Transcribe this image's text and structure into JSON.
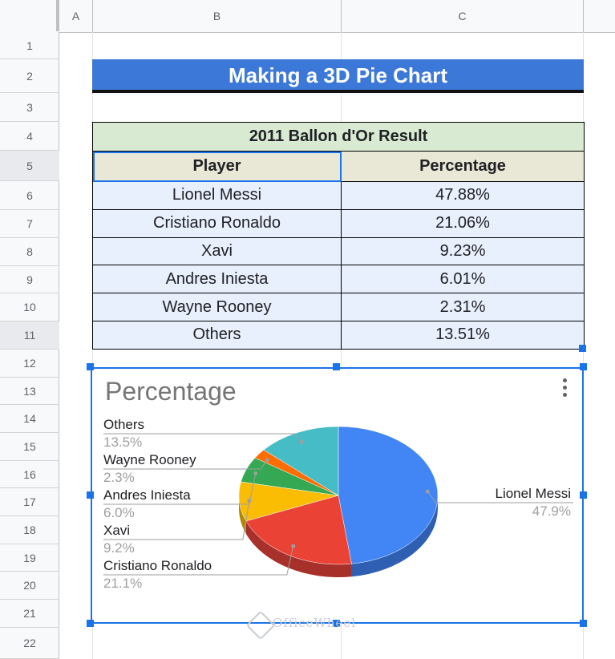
{
  "columns": [
    "A",
    "B",
    "C"
  ],
  "rows": [
    "1",
    "2",
    "3",
    "4",
    "5",
    "6",
    "7",
    "8",
    "9",
    "10",
    "11",
    "12",
    "13",
    "14",
    "15",
    "16",
    "17",
    "18",
    "19",
    "20",
    "21",
    "22"
  ],
  "sheet_title": "Making a 3D Pie Chart",
  "table": {
    "caption": "2011 Ballon d'Or Result",
    "headers": [
      "Player",
      "Percentage"
    ],
    "rows": [
      [
        "Lionel Messi",
        "47.88%"
      ],
      [
        "Cristiano Ronaldo",
        "21.06%"
      ],
      [
        "Xavi",
        "9.23%"
      ],
      [
        "Andres Iniesta",
        "6.01%"
      ],
      [
        "Wayne Rooney",
        "2.31%"
      ],
      [
        "Others",
        "13.51%"
      ]
    ]
  },
  "chart_data": {
    "type": "pie",
    "title": "Percentage",
    "is_3d": true,
    "slices": [
      {
        "label": "Lionel Messi",
        "value": 47.88,
        "display": "47.9%",
        "color": "#4285f4",
        "side": "#2f5fb3"
      },
      {
        "label": "Cristiano Ronaldo",
        "value": 21.06,
        "display": "21.1%",
        "color": "#ea4335",
        "side": "#a8302a"
      },
      {
        "label": "Xavi",
        "value": 9.23,
        "display": "9.2%",
        "color": "#fbbc04",
        "side": "#b48703"
      },
      {
        "label": "Andres Iniesta",
        "value": 6.01,
        "display": "6.0%",
        "color": "#34a853",
        "side": "#257839"
      },
      {
        "label": "Wayne Rooney",
        "value": 2.31,
        "display": "2.3%",
        "color": "#ff6d01",
        "side": "#b84e01"
      },
      {
        "label": "Others",
        "value": 13.51,
        "display": "13.5%",
        "color": "#46bdc6",
        "side": "#32878e"
      }
    ],
    "legend": "labels"
  },
  "watermark": "OfficeWheel"
}
